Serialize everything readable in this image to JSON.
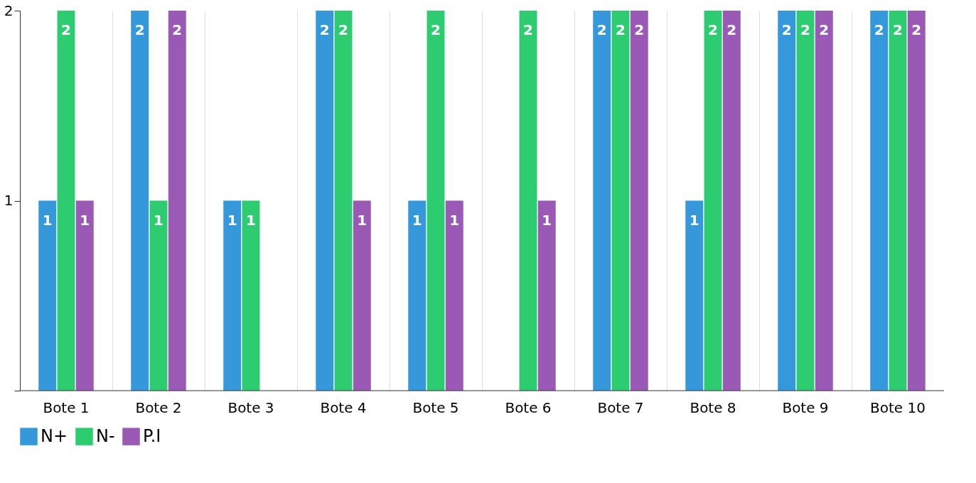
{
  "chart_data": {
    "type": "bar",
    "categories": [
      "Bote 1",
      "Bote 2",
      "Bote 3",
      "Bote 4",
      "Bote 5",
      "Bote 6",
      "Bote 7",
      "Bote 8",
      "Bote 9",
      "Bote 10"
    ],
    "series": [
      {
        "name": "N+",
        "color": "#3498db",
        "values": [
          1,
          2,
          1,
          2,
          1,
          0,
          2,
          1,
          2,
          2
        ],
        "value_labels": [
          "1",
          "2",
          "1",
          "2",
          "1",
          null,
          "2",
          "1",
          "2",
          "2"
        ]
      },
      {
        "name": "N-",
        "color": "#2ecc71",
        "values": [
          2,
          1,
          1,
          2,
          2,
          2,
          2,
          2,
          2,
          2
        ],
        "value_labels": [
          "2",
          "1",
          "1",
          "2",
          "2",
          "2",
          "2",
          "2",
          "2",
          "2"
        ]
      },
      {
        "name": "P.I",
        "color": "#9b59b6",
        "values": [
          1,
          2,
          0,
          1,
          1,
          1,
          2,
          2,
          2,
          2
        ],
        "value_labels": [
          "1",
          "2",
          null,
          "1",
          "1",
          "1",
          "2",
          "2",
          "2",
          "2"
        ]
      }
    ],
    "ylim": [
      0,
      2
    ],
    "yticks": [
      {
        "value": 0,
        "label": null
      },
      1,
      2
    ],
    "grid": "x",
    "legend": "bottom"
  }
}
